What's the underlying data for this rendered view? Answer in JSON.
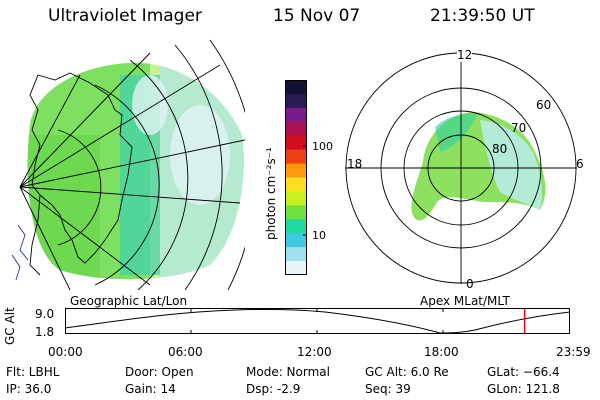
{
  "header": {
    "instrument": "Ultraviolet Imager",
    "date": "15 Nov 07",
    "time": "21:39:50 UT"
  },
  "colorbar": {
    "unit_label": "photon cm⁻²s⁻¹",
    "ticks": [
      "100",
      "10"
    ],
    "colors": [
      "#111133",
      "#2a1a55",
      "#7a1a8a",
      "#aa1050",
      "#d01020",
      "#ee4010",
      "#ff9a10",
      "#ffe020",
      "#c8f020",
      "#6ee040",
      "#20d8a0",
      "#40c8e0",
      "#a0e0f0",
      "#e8f4f8"
    ]
  },
  "polar": {
    "mlt_labels": {
      "top": "12",
      "left": "18",
      "right": "6",
      "bottom": "0"
    },
    "lat_labels": [
      "60",
      "70",
      "80"
    ]
  },
  "map_labels": {
    "left": "Geographic Lat/Lon",
    "right": "Apex  MLat/MLT"
  },
  "timeline": {
    "ylabel": "GC Alt",
    "ymax": "9.0",
    "ymin": "1.8",
    "xticks": [
      "00:00",
      "06:00",
      "12:00",
      "18:00",
      "23:59"
    ],
    "current_time_fraction": 0.91
  },
  "info": {
    "flt": "Flt: LBHL",
    "ip": "IP: 36.0",
    "door": "Door: Open",
    "gain": "Gain: 14",
    "mode": "Mode: Normal",
    "dsp": "Dsp:    -2.9",
    "gcalt": "GC Alt: 6.0 Re",
    "seq": "Seq: 39",
    "glat": "GLat: −66.4",
    "glon": "GLon: 121.8"
  }
}
